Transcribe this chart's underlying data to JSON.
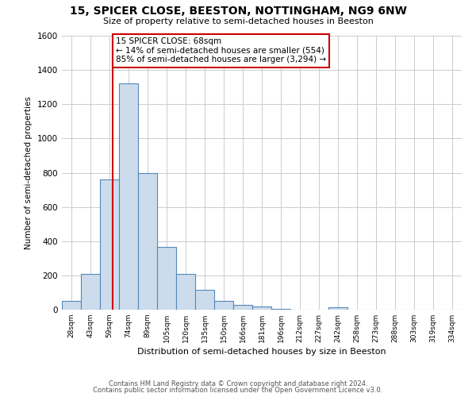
{
  "title": "15, SPICER CLOSE, BEESTON, NOTTINGHAM, NG9 6NW",
  "subtitle": "Size of property relative to semi-detached houses in Beeston",
  "xlabel": "Distribution of semi-detached houses by size in Beeston",
  "ylabel": "Number of semi-detached properties",
  "bar_values": [
    50,
    210,
    760,
    1320,
    800,
    365,
    210,
    115,
    50,
    30,
    20,
    5,
    0,
    0,
    15,
    0,
    0,
    0,
    0,
    0,
    0
  ],
  "bin_labels": [
    "28sqm",
    "43sqm",
    "59sqm",
    "74sqm",
    "89sqm",
    "105sqm",
    "120sqm",
    "135sqm",
    "150sqm",
    "166sqm",
    "181sqm",
    "196sqm",
    "212sqm",
    "227sqm",
    "242sqm",
    "258sqm",
    "273sqm",
    "288sqm",
    "303sqm",
    "319sqm",
    "334sqm"
  ],
  "bar_color": "#ccdcec",
  "bar_edge_color": "#5588bb",
  "red_line_x": 2.68,
  "property_size": "68sqm",
  "pct_smaller": 14,
  "count_smaller": 554,
  "pct_larger": 85,
  "count_larger": 3294,
  "annotation_box_color": "#ffffff",
  "annotation_box_edgecolor": "#cc0000",
  "red_line_color": "#cc0000",
  "ylim": [
    0,
    1600
  ],
  "yticks": [
    0,
    200,
    400,
    600,
    800,
    1000,
    1200,
    1400,
    1600
  ],
  "footnote1": "Contains HM Land Registry data © Crown copyright and database right 2024.",
  "footnote2": "Contains public sector information licensed under the Open Government Licence v3.0.",
  "background_color": "#ffffff",
  "plot_bg_color": "#ffffff",
  "grid_color": "#cccccc"
}
